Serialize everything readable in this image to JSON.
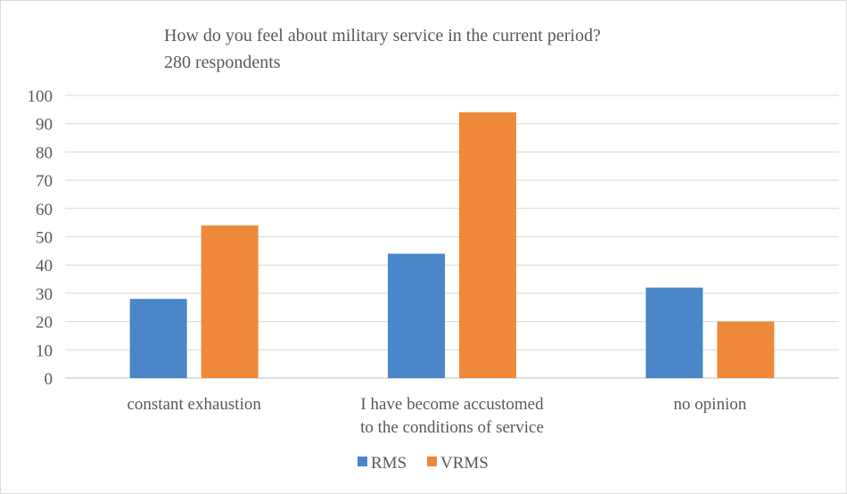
{
  "chart_data": {
    "type": "bar",
    "title": "How do you feel about military service in the current period?",
    "subtitle": "280 respondents",
    "categories": [
      [
        "constant exhaustion"
      ],
      [
        "I have become accustomed",
        "to the conditions of service"
      ],
      [
        "no opinion"
      ]
    ],
    "series": [
      {
        "name": "RMS",
        "color": "#4a86c8",
        "values": [
          28,
          44,
          32
        ]
      },
      {
        "name": "VRMS",
        "color": "#f0883a",
        "values": [
          54,
          94,
          20
        ]
      }
    ],
    "ylim": [
      0,
      100
    ],
    "yticks": [
      0,
      10,
      20,
      30,
      40,
      50,
      60,
      70,
      80,
      90,
      100
    ],
    "grid": true,
    "legend": "bottom"
  }
}
